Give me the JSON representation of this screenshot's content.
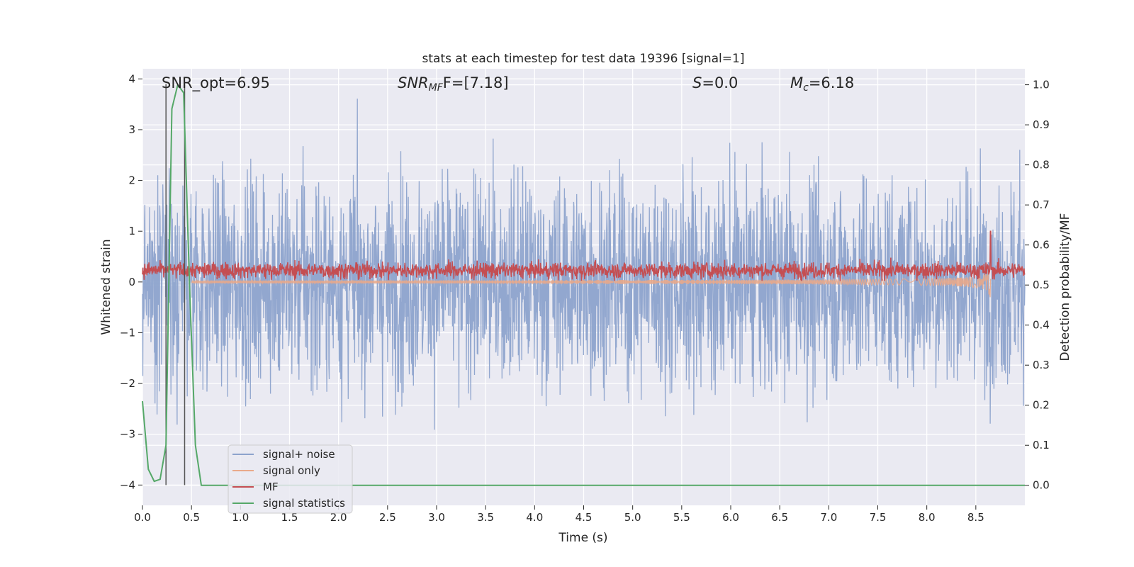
{
  "chart_data": {
    "type": "line",
    "title": "stats at each timestep for test data 19396 [signal=1]",
    "xlabel": "Time (s)",
    "ylabel": "Whitened strain",
    "ylabel_right": "Detection probability/MF",
    "xlim": [
      0.0,
      9.0
    ],
    "ylim": [
      -4.4,
      4.2
    ],
    "ylim_right": [
      -0.05,
      1.04
    ],
    "x_ticks": [
      "0.0",
      "0.5",
      "1.0",
      "1.5",
      "2.0",
      "2.5",
      "3.0",
      "3.5",
      "4.0",
      "4.5",
      "5.0",
      "5.5",
      "6.0",
      "6.5",
      "7.0",
      "7.5",
      "8.0",
      "8.5"
    ],
    "y_ticks": [
      "4",
      "3",
      "2",
      "1",
      "0",
      "−1",
      "−2",
      "−3",
      "−4"
    ],
    "y_ticks_right": [
      "1.0",
      "0.9",
      "0.8",
      "0.7",
      "0.6",
      "0.5",
      "0.4",
      "0.3",
      "0.2",
      "0.1",
      "0.0"
    ],
    "grid": true,
    "legend_position": "lower-left",
    "annotations": {
      "snr_opt": "SNR_opt=6.95",
      "snr_mf_name": "SNR",
      "snr_mf_sub": "MF",
      "snr_mf_value": "F=[7.18]",
      "s_name": "S",
      "s_value": "=0.0",
      "mc_name": "M",
      "mc_sub": "c",
      "mc_value": "=6.18"
    },
    "vertical_markers": [
      0.24,
      0.43
    ],
    "series": [
      {
        "name": "signal+ noise",
        "color": "#8da3cc",
        "axis": "left",
        "description_range": [
          -4.0,
          3.9
        ]
      },
      {
        "name": "signal only",
        "color": "#e9a98a",
        "axis": "left",
        "end_time": 8.65
      },
      {
        "name": "MF",
        "color": "#c44e52",
        "axis": "left",
        "baseline_range": [
          0.05,
          0.45
        ],
        "peak": {
          "x": 8.65,
          "y": 1.0
        }
      },
      {
        "name": "signal statistics",
        "color": "#55a868",
        "axis": "right",
        "x": [
          0.0,
          0.06,
          0.12,
          0.18,
          0.24,
          0.3,
          0.36,
          0.42,
          0.48,
          0.54,
          0.6,
          0.7,
          9.0
        ],
        "y": [
          0.21,
          0.04,
          0.01,
          0.015,
          0.1,
          0.94,
          1.0,
          0.98,
          0.5,
          0.1,
          0.0,
          0.0,
          0.0
        ]
      }
    ]
  }
}
